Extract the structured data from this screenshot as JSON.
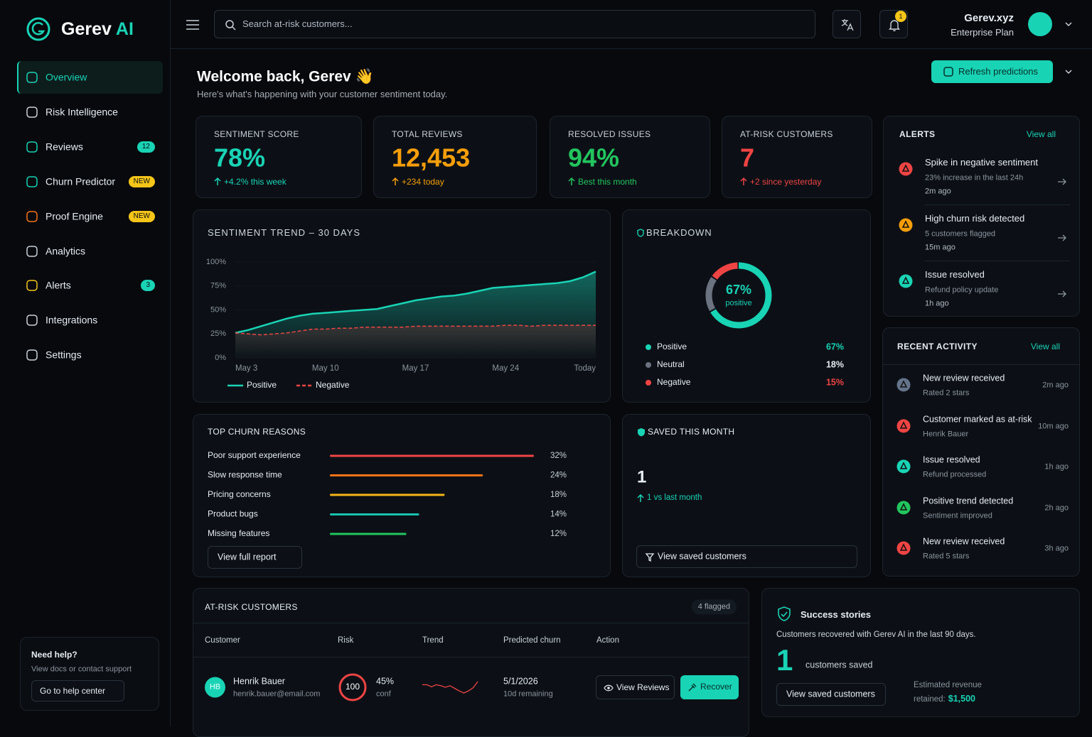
{
  "brand": {
    "name": "Gerev",
    "accent": "AI"
  },
  "nav": [
    {
      "label": "Overview",
      "active": true
    },
    {
      "label": "Risk Intelligence"
    },
    {
      "label": "Reviews",
      "badge": "12",
      "badge_color": "#19d3b5"
    },
    {
      "label": "Churn Predictor",
      "badge": "NEW",
      "badge_color": "#f5c518"
    },
    {
      "label": "Proof Engine",
      "badge": "NEW",
      "badge_color": "#f5c518"
    },
    {
      "label": "Analytics"
    },
    {
      "label": "Alerts",
      "badge": "3",
      "badge_color": "#19d3b5"
    },
    {
      "label": "Integrations"
    },
    {
      "label": "Settings"
    }
  ],
  "help": {
    "title": "Need help?",
    "text": "View docs or contact support",
    "button": "Go to help center"
  },
  "header": {
    "search_placeholder": "Search at-risk customers...",
    "notifications": "1",
    "user_name": "Gerev.xyz",
    "user_plan": "Enterprise Plan"
  },
  "welcome": {
    "title": "Welcome back, Gerev 👋",
    "subtitle": "Here's what's happening with your customer sentiment today.",
    "button": "Refresh predictions"
  },
  "kpis": [
    {
      "label": "SENTIMENT SCORE",
      "value": "78%",
      "delta": "+4.2% this week",
      "color": "#19d3b5"
    },
    {
      "label": "TOTAL REVIEWS",
      "value": "12,453",
      "delta": "+234 today",
      "color": "#f59e0b"
    },
    {
      "label": "RESOLVED ISSUES",
      "value": "94%",
      "delta": "Best this month",
      "color": "#22c55e"
    },
    {
      "label": "AT-RISK CUSTOMERS",
      "value": "7",
      "delta": "+2 since yesterday",
      "color": "#ef4444"
    }
  ],
  "alerts": {
    "title": "ALERTS",
    "link": "View all",
    "items": [
      {
        "title": "Spike in negative sentiment",
        "detail": "23% increase in the last 24h",
        "time": "2m ago",
        "color": "#ef4444"
      },
      {
        "title": "High churn risk detected",
        "detail": "5 customers flagged",
        "time": "15m ago",
        "color": "#f59e0b"
      },
      {
        "title": "Issue resolved",
        "detail": "Refund policy update",
        "time": "1h ago",
        "color": "#19d3b5"
      }
    ]
  },
  "activity": {
    "title": "RECENT ACTIVITY",
    "link": "View all",
    "items": [
      {
        "title": "New review received",
        "detail": "Rated 2 stars",
        "time": "2m ago",
        "color": "#64748b"
      },
      {
        "title": "Customer marked as at-risk",
        "detail": "Henrik Bauer",
        "time": "10m ago",
        "color": "#ef4444"
      },
      {
        "title": "Issue resolved",
        "detail": "Refund processed",
        "time": "1h ago",
        "color": "#19d3b5"
      },
      {
        "title": "Positive trend detected",
        "detail": "Sentiment improved",
        "time": "2h ago",
        "color": "#22c55e"
      },
      {
        "title": "New review received",
        "detail": "Rated 5 stars",
        "time": "3h ago",
        "color": "#ef4444"
      }
    ]
  },
  "saved": {
    "title": "SAVED THIS MONTH",
    "value": "1",
    "delta": "1 vs last month",
    "button": "View saved customers"
  },
  "at_risk": {
    "title": "AT-RISK CUSTOMERS",
    "badge": "4 flagged",
    "columns": [
      "Customer",
      "Risk",
      "Trend",
      "Predicted churn",
      "Action"
    ],
    "rows": [
      {
        "initials": "HB",
        "name": "Henrik Bauer",
        "email": "henrik.bauer@email.com",
        "risk": "100",
        "confidence": "45%",
        "confidence_label": "conf",
        "trend": [
          5,
          5,
          4.6,
          5,
          4.8,
          4.5,
          4.8,
          4.3,
          3.8,
          3.4,
          3.8,
          4.4,
          5.6
        ],
        "date": "5/1/2026",
        "remaining": "10d remaining",
        "actions": [
          "View Reviews",
          "Recover"
        ]
      }
    ]
  },
  "success": {
    "title": "Success stories",
    "text": "Customers recovered with Gerev AI in the last 90 days.",
    "value": "1",
    "unit": "customers saved",
    "button": "View saved customers",
    "revenue_label": "Estimated revenue retained:",
    "revenue": "$1,500"
  },
  "chart_data": [
    {
      "type": "line",
      "title": "SENTIMENT TREND – 30 DAYS",
      "categories": [
        "May 3",
        null,
        null,
        null,
        null,
        null,
        null,
        "May 10",
        null,
        null,
        null,
        null,
        null,
        null,
        "May 17",
        null,
        null,
        null,
        null,
        null,
        null,
        "May 24",
        null,
        null,
        null,
        null,
        null,
        null,
        "Today"
      ],
      "series": [
        {
          "name": "Positive",
          "color": "#19d3b5",
          "values": [
            26,
            29,
            33,
            37,
            41,
            44,
            46,
            47,
            48,
            49,
            50,
            51,
            54,
            57,
            60,
            62,
            64,
            65,
            67,
            70,
            73,
            74,
            75,
            76,
            77,
            78,
            80,
            84,
            90
          ]
        },
        {
          "name": "Negative",
          "color": "#ef4444",
          "values": [
            26,
            25,
            24,
            25,
            26,
            28,
            30,
            30,
            31,
            31,
            32,
            32,
            32,
            32,
            33,
            33,
            33,
            33,
            33,
            33,
            33,
            34,
            34,
            33,
            34,
            34,
            34,
            34,
            34
          ]
        }
      ],
      "ylim": [
        0,
        100
      ],
      "yticks": [
        {
          "value": 0,
          "label": "0%"
        },
        {
          "value": 25,
          "label": "25%"
        },
        {
          "value": 50,
          "label": "50%"
        },
        {
          "value": 75,
          "label": "75%"
        },
        {
          "value": 100,
          "label": "100%"
        }
      ],
      "legend": "bottom"
    },
    {
      "type": "pie",
      "title": "BREAKDOWN",
      "center_label": "positive",
      "categories": [
        "Positive",
        "Neutral",
        "Negative"
      ],
      "values": [
        67,
        18,
        15
      ],
      "value_labels": [
        "67%",
        "18%",
        "15%"
      ],
      "colors": [
        "#19d3b5",
        "#6b7280",
        "#ef4444"
      ]
    },
    {
      "type": "bar",
      "title": "TOP CHURN REASONS",
      "orientation": "horizontal",
      "button": "View full report",
      "categories": [
        "Poor support experience",
        "Slow response time",
        "Pricing concerns",
        "Product bugs",
        "Missing features"
      ],
      "values": [
        32,
        24,
        18,
        14,
        12
      ],
      "value_labels": [
        "32%",
        "24%",
        "18%",
        "14%",
        "12%"
      ],
      "colors": [
        "#ef4444",
        "#f97316",
        "#f5b418",
        "#19c2b0",
        "#22c55e"
      ]
    }
  ]
}
